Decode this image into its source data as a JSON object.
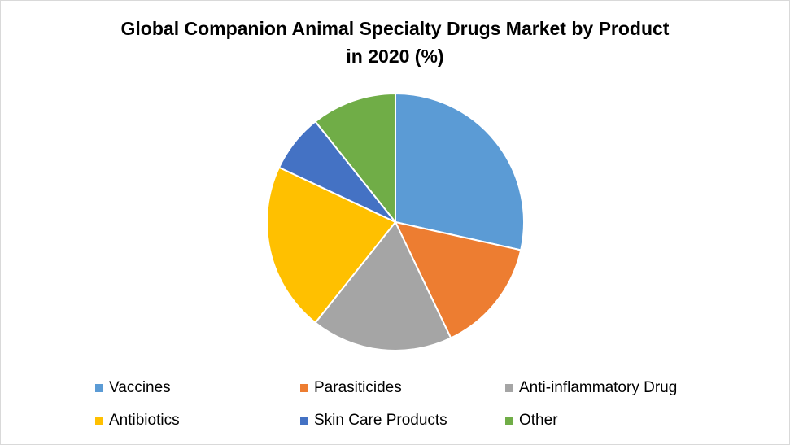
{
  "chart_data": {
    "type": "pie",
    "title": "Global Companion Animal Specialty Drugs Market by Product in 2020 (%)",
    "title_lines": [
      "Global Companion Animal Specialty Drugs Market by Product",
      "in 2020 (%)"
    ],
    "categories": [
      "Vaccines",
      "Parasiticides",
      "Anti-inflammatory Drug",
      "Antibiotics",
      "Skin Care Products",
      "Other"
    ],
    "values": [
      28.5,
      14.4,
      17.8,
      21.3,
      7.3,
      10.7
    ],
    "colors": [
      "#5b9bd5",
      "#ed7d31",
      "#a5a5a5",
      "#ffc000",
      "#4472c4",
      "#70ad47"
    ],
    "legend_position": "bottom",
    "start_angle_deg": 0,
    "direction": "clockwise"
  }
}
